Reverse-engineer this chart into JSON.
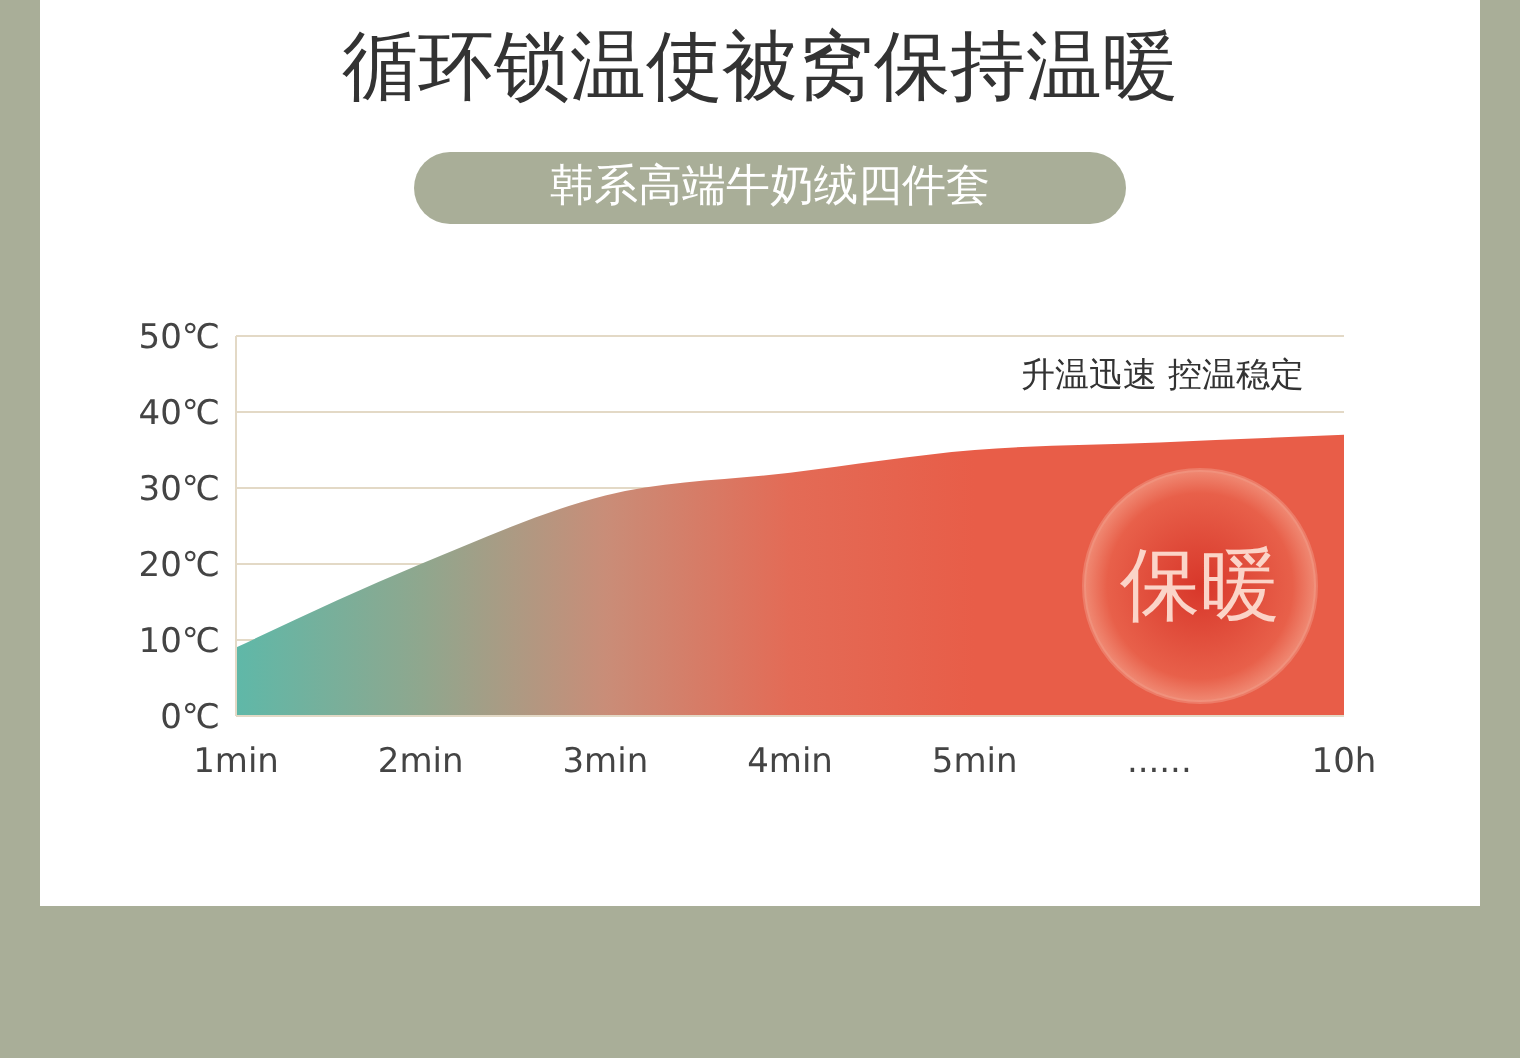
{
  "chart_data": {
    "type": "area",
    "title": "循环锁温使被窝保持温暖",
    "subtitle": "韩系高端牛奶绒四件套",
    "categories": [
      "1min",
      "2min",
      "3min",
      "4min",
      "5min",
      "......",
      "10h"
    ],
    "values": [
      9,
      20,
      29,
      32,
      35,
      36,
      37
    ],
    "colors": [
      "#5fb8a8",
      "#8fa78e",
      "#c98d78",
      "#e36b56",
      "#e85d48",
      "#e85d48",
      "#e85d48"
    ],
    "ylim": [
      0,
      50
    ],
    "yticks": [
      {
        "value": 0,
        "label": "0℃"
      },
      {
        "value": 10,
        "label": "10℃"
      },
      {
        "value": 20,
        "label": "20℃"
      },
      {
        "value": 30,
        "label": "30℃"
      },
      {
        "value": 40,
        "label": "40℃"
      },
      {
        "value": 50,
        "label": "50℃"
      }
    ],
    "grid": "y",
    "annotations": [
      "升温迅速 控温稳定",
      "保暖"
    ]
  }
}
